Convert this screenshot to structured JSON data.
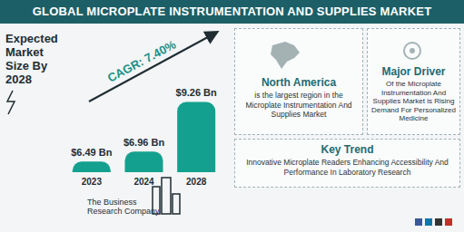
{
  "chart_data": {
    "type": "bar",
    "title": "GLOBAL MICROPLATE INSTRUMENTATION AND SUPPLIES MARKET",
    "subtitle": "Expected Market Size By 2028",
    "annotations": [
      "CAGR: 7.40%"
    ],
    "categories": [
      "2023",
      "2024",
      "2028"
    ],
    "values": [
      6.49,
      6.96,
      9.26
    ],
    "value_labels": [
      "$6.49 Bn",
      "$6.96 Bn",
      "$9.26 Bn"
    ],
    "color": "#14a08f",
    "ylim": [
      6,
      10
    ],
    "data_labels": true,
    "tick_labels": "x"
  },
  "panels": [
    {
      "title": "North America",
      "text": "is the largest region in the Microplate Instrumentation And Supplies Market"
    },
    {
      "title": "Major Driver",
      "text": "Of the Microplate Instrumentation And Supplies Market is Rising Demand For Personalized Medicine"
    },
    {
      "title": "Key Trend",
      "text": "Innovative Microplate Readers Enhancing Accessibility And Performance In Laboratory Research"
    }
  ],
  "logo": "The Business Research Company"
}
